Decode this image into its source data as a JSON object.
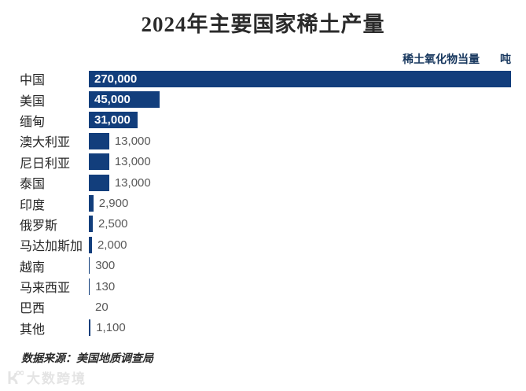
{
  "title": "2024年主要国家稀土产量",
  "unit_label": "稀土氧化物当量",
  "unit": "吨",
  "source": "数据来源：美国地质调查局",
  "watermark": "大数跨境",
  "colors": {
    "bar": "#123e7c",
    "title": "#2b2b2b",
    "category_label": "#262626",
    "value_inside": "#ffffff",
    "value_outside": "#595959",
    "unit_label": "#17375e",
    "watermark": "#e4e4e4"
  },
  "chart_data": {
    "type": "bar",
    "orientation": "horizontal",
    "title": "2024年主要国家稀土产量",
    "value_axis_label": "稀土氧化物当量（吨）",
    "categories": [
      "中国",
      "美国",
      "缅甸",
      "澳大利亚",
      "尼日利亚",
      "泰国",
      "印度",
      "俄罗斯",
      "马达加斯加",
      "越南",
      "马来西亚",
      "巴西",
      "其他"
    ],
    "values": [
      270000,
      45000,
      31000,
      13000,
      13000,
      13000,
      2900,
      2500,
      2000,
      300,
      130,
      20,
      1100
    ],
    "value_labels": [
      "270,000",
      "45,000",
      "31,000",
      "13,000",
      "13,000",
      "13,000",
      "2,900",
      "2,500",
      "2,000",
      "300",
      "130",
      "20",
      "1,100"
    ],
    "xlim": [
      0,
      270000
    ],
    "grid": false,
    "legend": false,
    "source": "美国地质调查局"
  }
}
